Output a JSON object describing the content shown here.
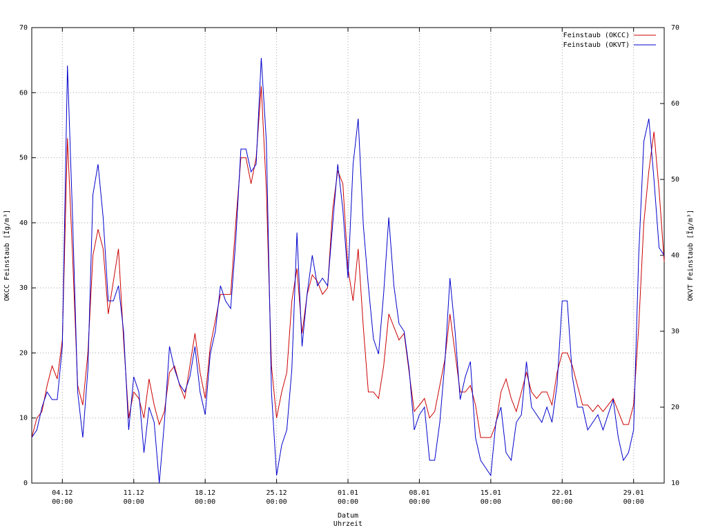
{
  "chart_data": {
    "type": "line",
    "y_label": "OKCC Feinstaub [Ïg/m³]",
    "y2_label": "OKVT Feinstaub [Ïg/m³]",
    "x_label": [
      "Datum",
      "Uhrzeit"
    ],
    "xlim": [
      "01.12 00:00",
      "01.02 00:00"
    ],
    "xticks": [
      {
        "value": "04.12 00:00",
        "label": [
          "04.12",
          "00:00"
        ]
      },
      {
        "value": "11.12 00:00",
        "label": [
          "11.12",
          "00:00"
        ]
      },
      {
        "value": "18.12 00:00",
        "label": [
          "18.12",
          "00:00"
        ]
      },
      {
        "value": "25.12 00:00",
        "label": [
          "25.12",
          "00:00"
        ]
      },
      {
        "value": "01.01 00:00",
        "label": [
          "01.01",
          "00:00"
        ]
      },
      {
        "value": "08.01 00:00",
        "label": [
          "08.01",
          "00:00"
        ]
      },
      {
        "value": "15.01 00:00",
        "label": [
          "15.01",
          "00:00"
        ]
      },
      {
        "value": "22.01 00:00",
        "label": [
          "22.01",
          "00:00"
        ]
      },
      {
        "value": "29.01 00:00",
        "label": [
          "29.01",
          "00:00"
        ]
      }
    ],
    "ylim": [
      0,
      70
    ],
    "yticks": [
      0,
      10,
      20,
      30,
      40,
      50,
      60,
      70
    ],
    "y2lim": [
      10,
      70
    ],
    "y2ticks": [
      10,
      20,
      30,
      40,
      50,
      60,
      70
    ],
    "grid": true,
    "legend": "top-right",
    "x": [
      "01.12 00:00",
      "01.12 12:00",
      "02.12 00:00",
      "02.12 12:00",
      "03.12 00:00",
      "03.12 12:00",
      "04.12 00:00",
      "04.12 12:00",
      "05.12 00:00",
      "05.12 12:00",
      "06.12 00:00",
      "06.12 12:00",
      "07.12 00:00",
      "07.12 12:00",
      "08.12 00:00",
      "08.12 12:00",
      "09.12 00:00",
      "09.12 12:00",
      "10.12 00:00",
      "10.12 12:00",
      "11.12 00:00",
      "11.12 12:00",
      "12.12 00:00",
      "12.12 12:00",
      "13.12 00:00",
      "13.12 12:00",
      "14.12 00:00",
      "14.12 12:00",
      "15.12 00:00",
      "15.12 12:00",
      "16.12 00:00",
      "16.12 12:00",
      "17.12 00:00",
      "17.12 12:00",
      "18.12 00:00",
      "18.12 12:00",
      "19.12 00:00",
      "19.12 12:00",
      "20.12 00:00",
      "20.12 12:00",
      "21.12 00:00",
      "21.12 12:00",
      "22.12 00:00",
      "22.12 12:00",
      "23.12 00:00",
      "23.12 12:00",
      "24.12 00:00",
      "24.12 12:00",
      "25.12 00:00",
      "25.12 12:00",
      "26.12 00:00",
      "26.12 12:00",
      "27.12 00:00",
      "27.12 12:00",
      "28.12 00:00",
      "28.12 12:00",
      "29.12 00:00",
      "29.12 12:00",
      "30.12 00:00",
      "30.12 12:00",
      "31.12 00:00",
      "31.12 12:00",
      "01.01 00:00",
      "01.01 12:00",
      "02.01 00:00",
      "02.01 12:00",
      "03.01 00:00",
      "03.01 12:00",
      "04.01 00:00",
      "04.01 12:00",
      "05.01 00:00",
      "05.01 12:00",
      "06.01 00:00",
      "06.01 12:00",
      "07.01 00:00",
      "07.01 12:00",
      "08.01 00:00",
      "08.01 12:00",
      "09.01 00:00",
      "09.01 12:00",
      "10.01 00:00",
      "10.01 12:00",
      "11.01 00:00",
      "11.01 12:00",
      "12.01 00:00",
      "12.01 12:00",
      "13.01 00:00",
      "13.01 12:00",
      "14.01 00:00",
      "14.01 12:00",
      "15.01 00:00",
      "15.01 12:00",
      "16.01 00:00",
      "16.01 12:00",
      "17.01 00:00",
      "17.01 12:00",
      "18.01 00:00",
      "18.01 12:00",
      "19.01 00:00",
      "19.01 12:00",
      "20.01 00:00",
      "20.01 12:00",
      "21.01 00:00",
      "21.01 12:00",
      "22.01 00:00",
      "22.01 12:00",
      "23.01 00:00",
      "23.01 12:00",
      "24.01 00:00",
      "24.01 12:00",
      "25.01 00:00",
      "25.01 12:00",
      "26.01 00:00",
      "26.01 12:00",
      "27.01 00:00",
      "27.01 12:00",
      "28.01 00:00",
      "28.01 12:00",
      "29.01 00:00",
      "29.01 12:00",
      "30.01 00:00",
      "30.01 12:00",
      "31.01 00:00",
      "31.01 12:00",
      "01.02 00:00"
    ],
    "series": [
      {
        "name": "Feinstaub (OKCC)",
        "color": "#cc0000",
        "axis": "y",
        "values": [
          7,
          10,
          11,
          15,
          18,
          16,
          22,
          53,
          35,
          15,
          12,
          20,
          35,
          39,
          36,
          26,
          31,
          36,
          22,
          10,
          14,
          13,
          10,
          16,
          12,
          9,
          11,
          17,
          18,
          15,
          13,
          18,
          23,
          17,
          13,
          21,
          25,
          29,
          29,
          29,
          40,
          50,
          50,
          46,
          50,
          61,
          45,
          18,
          10,
          14,
          17,
          28,
          33,
          23,
          29,
          32,
          31,
          29,
          30,
          42,
          48,
          46,
          33,
          28,
          36,
          24,
          14,
          14,
          13,
          18,
          26,
          24,
          22,
          23,
          17,
          11,
          12,
          13,
          10,
          11,
          15,
          19,
          26,
          20,
          14,
          14,
          15,
          12,
          7,
          7,
          7,
          9,
          14,
          16,
          13,
          11,
          14,
          17,
          14,
          13,
          14,
          14,
          12,
          17,
          20,
          20,
          18,
          15,
          12,
          12,
          11,
          12,
          11,
          12,
          13,
          11,
          9,
          9,
          12,
          24,
          40,
          48,
          54,
          45,
          34
        ]
      },
      {
        "name": "Feinstaub (OKVT)",
        "color": "#0000cc",
        "axis": "y2",
        "values": [
          16,
          17,
          20,
          22,
          21,
          21,
          28,
          65,
          45,
          22,
          16,
          25,
          48,
          52,
          45,
          34,
          34,
          36,
          30,
          17,
          24,
          22,
          14,
          20,
          18,
          10,
          18,
          28,
          25,
          23,
          22,
          24,
          28,
          22,
          19,
          27,
          30,
          36,
          34,
          33,
          42,
          54,
          54,
          51,
          52,
          66,
          55,
          22,
          11,
          15,
          17,
          25,
          43,
          28,
          35,
          40,
          36,
          37,
          36,
          44,
          52,
          46,
          37,
          52,
          58,
          44,
          36,
          29,
          27,
          35,
          45,
          36,
          31,
          30,
          25,
          17,
          19,
          20,
          13,
          13,
          18,
          26,
          37,
          30,
          21,
          24,
          26,
          16,
          13,
          12,
          11,
          18,
          20,
          14,
          13,
          18,
          19,
          26,
          20,
          19,
          18,
          20,
          18,
          23,
          34,
          34,
          24,
          20,
          20,
          17,
          18,
          19,
          17,
          19,
          21,
          16,
          13,
          14,
          17,
          40,
          55,
          58,
          50,
          41,
          40
        ]
      }
    ]
  }
}
